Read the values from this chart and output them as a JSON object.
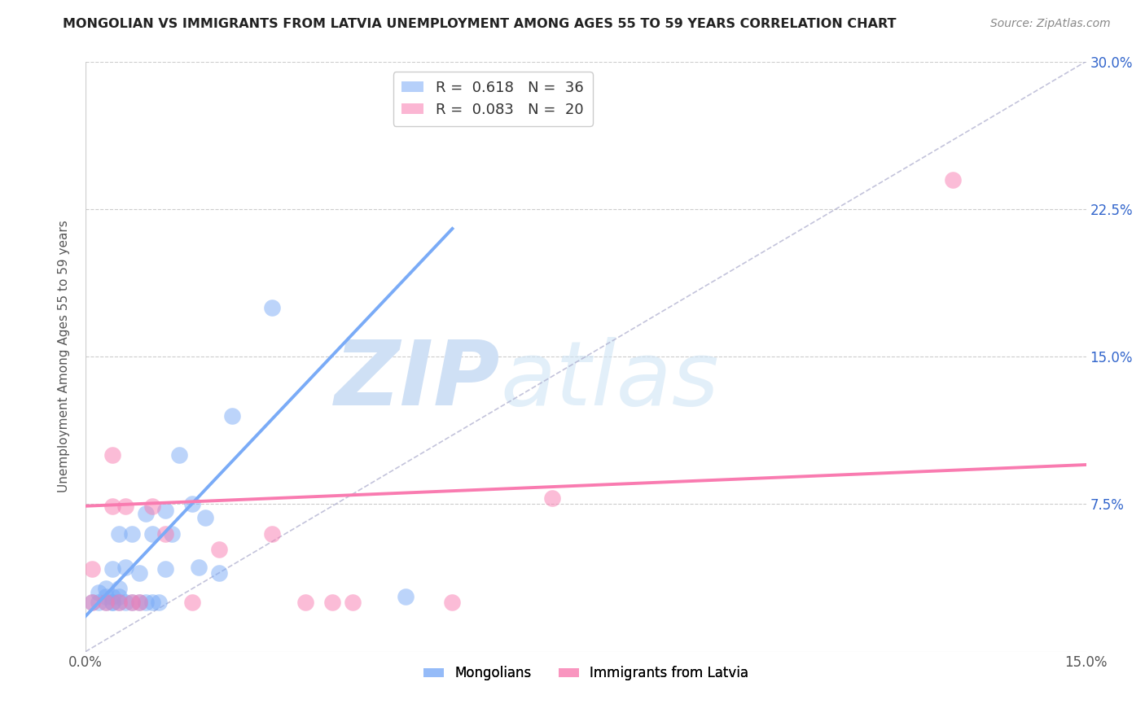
{
  "title": "MONGOLIAN VS IMMIGRANTS FROM LATVIA UNEMPLOYMENT AMONG AGES 55 TO 59 YEARS CORRELATION CHART",
  "source": "Source: ZipAtlas.com",
  "ylabel": "Unemployment Among Ages 55 to 59 years",
  "xlim": [
    0.0,
    0.15
  ],
  "ylim": [
    0.0,
    0.3
  ],
  "xtick_positions": [
    0.0,
    0.025,
    0.05,
    0.075,
    0.1,
    0.125,
    0.15
  ],
  "xticklabels": [
    "0.0%",
    "",
    "",
    "",
    "",
    "",
    "15.0%"
  ],
  "ytick_positions": [
    0.0,
    0.075,
    0.15,
    0.225,
    0.3
  ],
  "yticklabels_right": [
    "",
    "7.5%",
    "15.0%",
    "22.5%",
    "30.0%"
  ],
  "mongolian_R": 0.618,
  "mongolian_N": 36,
  "latvia_R": 0.083,
  "latvia_N": 20,
  "mongolian_color": "#7aabf7",
  "latvia_color": "#f97bb0",
  "mongolian_line_x0": 0.0,
  "mongolian_line_y0": 0.018,
  "mongolian_line_x1": 0.055,
  "mongolian_line_y1": 0.215,
  "latvia_line_x0": 0.0,
  "latvia_line_y0": 0.074,
  "latvia_line_x1": 0.15,
  "latvia_line_y1": 0.095,
  "mongolian_scatter_x": [
    0.001,
    0.002,
    0.002,
    0.003,
    0.003,
    0.003,
    0.004,
    0.004,
    0.004,
    0.004,
    0.005,
    0.005,
    0.005,
    0.005,
    0.006,
    0.006,
    0.007,
    0.007,
    0.008,
    0.008,
    0.009,
    0.009,
    0.01,
    0.01,
    0.011,
    0.012,
    0.012,
    0.013,
    0.014,
    0.016,
    0.017,
    0.018,
    0.02,
    0.022,
    0.028,
    0.048
  ],
  "mongolian_scatter_y": [
    0.025,
    0.025,
    0.03,
    0.025,
    0.028,
    0.032,
    0.025,
    0.025,
    0.028,
    0.042,
    0.025,
    0.028,
    0.032,
    0.06,
    0.025,
    0.043,
    0.025,
    0.06,
    0.025,
    0.04,
    0.025,
    0.07,
    0.025,
    0.06,
    0.025,
    0.042,
    0.072,
    0.06,
    0.1,
    0.075,
    0.043,
    0.068,
    0.04,
    0.12,
    0.175,
    0.028
  ],
  "latvia_scatter_x": [
    0.001,
    0.001,
    0.003,
    0.004,
    0.004,
    0.005,
    0.006,
    0.007,
    0.008,
    0.01,
    0.012,
    0.016,
    0.02,
    0.028,
    0.033,
    0.037,
    0.04,
    0.055,
    0.07,
    0.13
  ],
  "latvia_scatter_y": [
    0.025,
    0.042,
    0.025,
    0.074,
    0.1,
    0.025,
    0.074,
    0.025,
    0.025,
    0.074,
    0.06,
    0.025,
    0.052,
    0.06,
    0.025,
    0.025,
    0.025,
    0.025,
    0.078,
    0.24
  ],
  "diag_line_x": [
    0.0,
    0.15
  ],
  "diag_line_y": [
    0.0,
    0.3
  ],
  "watermark_zip": "ZIP",
  "watermark_atlas": "atlas",
  "background_color": "#ffffff",
  "grid_color": "#cccccc"
}
